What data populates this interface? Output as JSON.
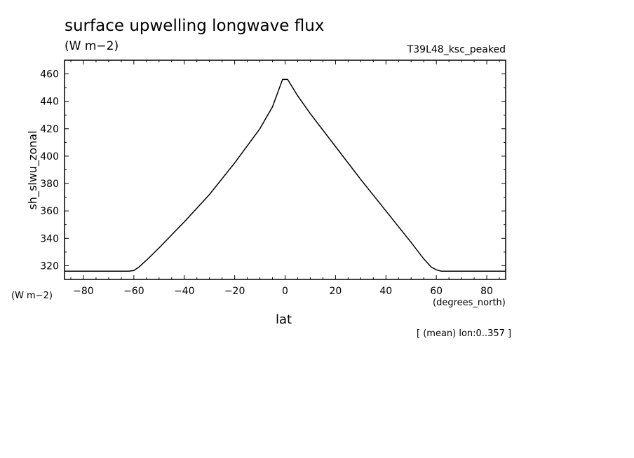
{
  "chart_data": {
    "type": "line",
    "title": "surface upwelling longwave flux",
    "subtitle": "(W m−2)",
    "run_label": "T39L48_ksc_peaked",
    "ylabel": "sh_slwu_zonal",
    "y_units": "(W m−2)",
    "xlabel": "lat",
    "x_units": "(degrees_north)",
    "note": "[ (mean) lon:0..357 ]",
    "xlim": [
      -87.5,
      87.5
    ],
    "ylim": [
      310,
      470
    ],
    "x_ticks": [
      -80,
      -60,
      -40,
      -20,
      0,
      20,
      40,
      60,
      80
    ],
    "x_tick_labels": [
      "−80",
      "−60",
      "−40",
      "−20",
      "0",
      "20",
      "40",
      "60",
      "80"
    ],
    "y_ticks": [
      320,
      340,
      360,
      380,
      400,
      420,
      440,
      460
    ],
    "y_tick_labels": [
      "320",
      "340",
      "360",
      "380",
      "400",
      "420",
      "440",
      "460"
    ],
    "grid": false,
    "series": [
      {
        "x": [
          -87.5,
          -80,
          -70,
          -62,
          -60,
          -58,
          -55,
          -50,
          -40,
          -30,
          -20,
          -10,
          -5,
          -1,
          0,
          1,
          5,
          10,
          20,
          30,
          40,
          50,
          55,
          58,
          60,
          62,
          70,
          80,
          87.5
        ],
        "y": [
          316,
          316,
          316,
          316,
          316.5,
          319,
          324,
          333,
          352,
          372,
          395,
          420,
          436,
          456,
          456,
          456,
          444,
          431,
          407,
          383,
          360,
          337,
          325,
          319,
          317,
          316,
          316,
          316,
          316
        ]
      }
    ]
  }
}
